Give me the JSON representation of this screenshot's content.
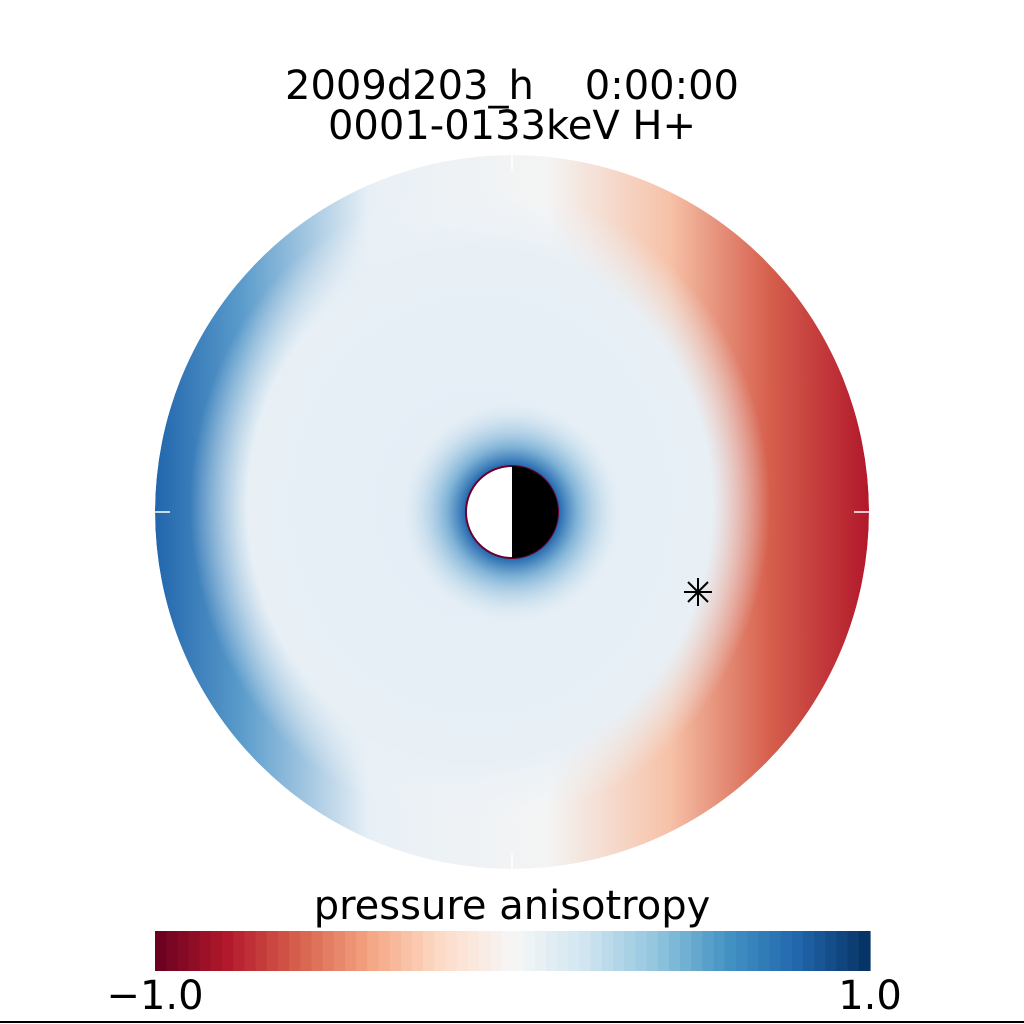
{
  "chart_data": {
    "type": "polar-map",
    "title": "2009d203_h    0:00:00",
    "subtitle": "0001-0133keV H+",
    "colorbar_label": "pressure anisotropy",
    "clim": [
      -1,
      1
    ],
    "cticks": [
      {
        "value": -1,
        "label": "−1.0"
      },
      {
        "value": 1,
        "label": "1.0"
      }
    ],
    "colormap": [
      "#67001f",
      "#b2182b",
      "#d6604d",
      "#f4a582",
      "#fddbc7",
      "#f7f7f7",
      "#d1e5f0",
      "#92c5de",
      "#4393c3",
      "#2166ac",
      "#053061"
    ]
  }
}
